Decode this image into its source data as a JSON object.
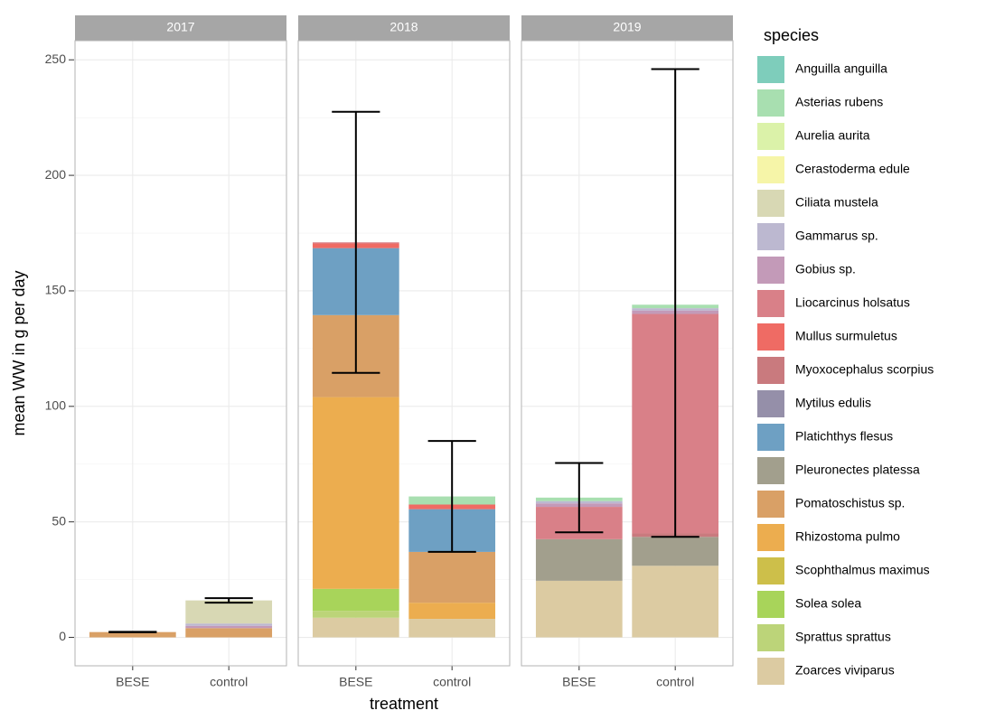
{
  "chart_data": {
    "type": "faceted_stacked_bar",
    "y_label": "mean WW in g per day",
    "x_label": "treatment",
    "legend_title": "species",
    "ylim": [
      -12.3,
      258.3
    ],
    "yticks": [
      0,
      50,
      100,
      150,
      200,
      250
    ],
    "grid": true,
    "panels": [
      {
        "title": "2017",
        "categories": [
          "BESE",
          "control"
        ]
      },
      {
        "title": "2018",
        "categories": [
          "BESE",
          "control"
        ]
      },
      {
        "title": "2019",
        "categories": [
          "BESE",
          "control"
        ]
      }
    ],
    "errors": [
      [
        [
          2.2,
          2.4
        ],
        [
          15,
          17
        ]
      ],
      [
        [
          114.5,
          227.5
        ],
        [
          37,
          85
        ]
      ],
      [
        [
          45.5,
          75.5
        ],
        [
          43.5,
          246
        ]
      ]
    ],
    "series": [
      {
        "name": "Anguilla anguilla",
        "color": "#7ecdbb",
        "values": [
          [
            0,
            0
          ],
          [
            0,
            0
          ],
          [
            0,
            0
          ]
        ]
      },
      {
        "name": "Asterias rubens",
        "color": "#a8dfb0",
        "values": [
          [
            0,
            0
          ],
          [
            0,
            3.5
          ],
          [
            1.5,
            1.5
          ]
        ]
      },
      {
        "name": "Aurelia aurita",
        "color": "#dbf2a9",
        "values": [
          [
            0,
            0
          ],
          [
            0,
            0
          ],
          [
            0,
            0
          ]
        ]
      },
      {
        "name": "Cerastoderma edule",
        "color": "#f6f5a8",
        "values": [
          [
            0,
            0
          ],
          [
            0,
            0
          ],
          [
            0,
            0
          ]
        ]
      },
      {
        "name": "Ciliata mustela",
        "color": "#d8d8b4",
        "values": [
          [
            0,
            10
          ],
          [
            0,
            0
          ],
          [
            0,
            0
          ]
        ]
      },
      {
        "name": "Gammarus sp.",
        "color": "#bcb8d0",
        "values": [
          [
            0,
            1
          ],
          [
            0,
            0
          ],
          [
            1,
            1
          ]
        ]
      },
      {
        "name": "Gobius sp.",
        "color": "#c39ab8",
        "values": [
          [
            0,
            1
          ],
          [
            0,
            0
          ],
          [
            1.5,
            1.5
          ]
        ]
      },
      {
        "name": "Liocarcinus holsatus",
        "color": "#d98088",
        "values": [
          [
            0,
            0
          ],
          [
            0.5,
            0
          ],
          [
            14,
            95
          ]
        ]
      },
      {
        "name": "Mullus surmuletus",
        "color": "#ef6b64",
        "values": [
          [
            0,
            0
          ],
          [
            2,
            2
          ],
          [
            0,
            0
          ]
        ]
      },
      {
        "name": "Myoxocephalus scorpius",
        "color": "#c97a7e",
        "values": [
          [
            0,
            0
          ],
          [
            0,
            0
          ],
          [
            0,
            1.5
          ]
        ]
      },
      {
        "name": "Mytilus edulis",
        "color": "#958fa9",
        "values": [
          [
            0,
            0
          ],
          [
            0,
            0
          ],
          [
            0,
            0
          ]
        ]
      },
      {
        "name": "Platichthys flesus",
        "color": "#6ea0c3",
        "values": [
          [
            0,
            0
          ],
          [
            29,
            18.5
          ],
          [
            0,
            0
          ]
        ]
      },
      {
        "name": "Pleuronectes platessa",
        "color": "#a29f8d",
        "values": [
          [
            0,
            0
          ],
          [
            0,
            0
          ],
          [
            18,
            12.5
          ]
        ]
      },
      {
        "name": "Pomatoschistus sp.",
        "color": "#d9a066",
        "values": [
          [
            2.3,
            4
          ],
          [
            35.5,
            22
          ],
          [
            0,
            0
          ]
        ]
      },
      {
        "name": "Rhizostoma pulmo",
        "color": "#ecad4f",
        "values": [
          [
            0,
            0
          ],
          [
            83,
            7
          ],
          [
            0,
            0
          ]
        ]
      },
      {
        "name": "Scophthalmus maximus",
        "color": "#cdbf4a",
        "values": [
          [
            0,
            0
          ],
          [
            0,
            0
          ],
          [
            0,
            0
          ]
        ]
      },
      {
        "name": "Solea solea",
        "color": "#a8d45a",
        "values": [
          [
            0,
            0
          ],
          [
            9.5,
            0
          ],
          [
            0,
            0
          ]
        ]
      },
      {
        "name": "Sprattus sprattus",
        "color": "#bcd479",
        "values": [
          [
            0,
            0
          ],
          [
            3,
            0
          ],
          [
            0,
            0
          ]
        ]
      },
      {
        "name": "Zoarces viviparus",
        "color": "#dccba2",
        "values": [
          [
            0,
            0
          ],
          [
            8.5,
            8
          ],
          [
            24.5,
            31
          ]
        ]
      }
    ]
  }
}
